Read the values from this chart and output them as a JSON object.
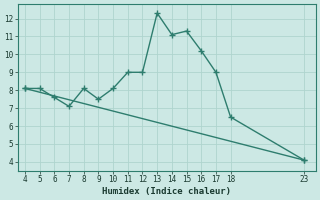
{
  "line1_x": [
    4,
    5,
    6,
    7,
    8,
    9,
    10,
    11,
    12,
    13,
    14,
    15,
    16,
    17,
    18,
    23
  ],
  "line1_y": [
    8.1,
    8.1,
    7.6,
    7.1,
    8.1,
    7.5,
    8.1,
    9.0,
    9.0,
    12.3,
    11.1,
    11.3,
    10.2,
    9.0,
    6.5,
    4.1
  ],
  "line2_x": [
    4,
    23
  ],
  "line2_y": [
    8.1,
    4.1
  ],
  "color": "#2e7d6e",
  "xlabel": "Humidex (Indice chaleur)",
  "xlim": [
    3.5,
    23.8
  ],
  "ylim": [
    3.5,
    12.8
  ],
  "xticks": [
    4,
    5,
    6,
    7,
    8,
    9,
    10,
    11,
    12,
    13,
    14,
    15,
    16,
    17,
    18,
    23
  ],
  "yticks": [
    4,
    5,
    6,
    7,
    8,
    9,
    10,
    11,
    12
  ],
  "background_color": "#cce8e4",
  "grid_color": "#afd4ce",
  "marker": "+",
  "markersize": 5,
  "linewidth": 1.0
}
